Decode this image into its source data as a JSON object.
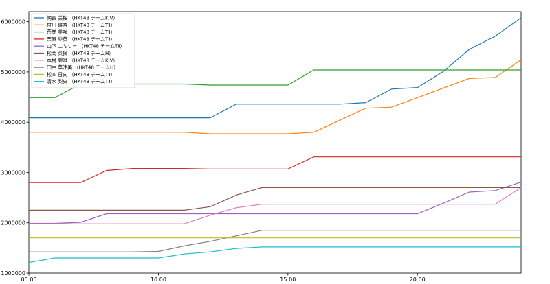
{
  "chart_data": {
    "type": "line",
    "title": "",
    "xlabel": "",
    "ylabel": "",
    "x": [
      5,
      6,
      7,
      8,
      9,
      10,
      11,
      12,
      13,
      14,
      15,
      16,
      17,
      18,
      19,
      20,
      21,
      22,
      23,
      24
    ],
    "xlim": [
      5,
      24
    ],
    "ylim": [
      1000000,
      6200000
    ],
    "xticks": [
      {
        "value": 5,
        "label": "05:00"
      },
      {
        "value": 10,
        "label": "10:00"
      },
      {
        "value": 15,
        "label": "15:00"
      },
      {
        "value": 20,
        "label": "20:00"
      }
    ],
    "yticks": [
      {
        "value": 1000000,
        "label": "1000000"
      },
      {
        "value": 2000000,
        "label": "2000000"
      },
      {
        "value": 3000000,
        "label": "3000000"
      },
      {
        "value": 4000000,
        "label": "4000000"
      },
      {
        "value": 5000000,
        "label": "5000000"
      },
      {
        "value": 6000000,
        "label": "6000000"
      }
    ],
    "grid": false,
    "legend_position": "top-left",
    "series": [
      {
        "name": "朝長 美桜 （HKT48 チームKIV）",
        "color": "#1f77b4",
        "values": [
          4090000,
          4090000,
          4090000,
          4090000,
          4090000,
          4090000,
          4090000,
          4090000,
          4360000,
          4360000,
          4360000,
          4360000,
          4360000,
          4390000,
          4660000,
          4690000,
          5010000,
          5450000,
          5710000,
          6080000
        ]
      },
      {
        "name": "村川 緋杏 （HKT48 チームTⅡ）",
        "color": "#ff7f0e",
        "values": [
          3800000,
          3800000,
          3800000,
          3800000,
          3800000,
          3800000,
          3800000,
          3770000,
          3770000,
          3770000,
          3770000,
          3800000,
          4040000,
          4280000,
          4300000,
          4490000,
          4680000,
          4870000,
          4890000,
          5240000
        ]
      },
      {
        "name": "荒巻 美咲 （HKT48 チームTⅡ）",
        "color": "#2ca02c",
        "values": [
          4490000,
          4490000,
          4760000,
          4760000,
          4760000,
          4760000,
          4760000,
          4740000,
          4740000,
          4740000,
          4740000,
          5040000,
          5040000,
          5040000,
          5040000,
          5040000,
          5040000,
          5040000,
          5040000,
          5040000
        ]
      },
      {
        "name": "栗原 紗英 （HKT48 チームTⅡ）",
        "color": "#d62728",
        "values": [
          2800000,
          2800000,
          2800000,
          3040000,
          3080000,
          3080000,
          3080000,
          3070000,
          3070000,
          3070000,
          3070000,
          3310000,
          3310000,
          3310000,
          3310000,
          3310000,
          3310000,
          3310000,
          3310000,
          3310000
        ]
      },
      {
        "name": "山下 エミリー （HKT48 チームTⅡ）",
        "color": "#9467bd",
        "values": [
          1990000,
          1990000,
          2010000,
          2180000,
          2180000,
          2180000,
          2180000,
          2180000,
          2180000,
          2180000,
          2180000,
          2180000,
          2180000,
          2180000,
          2180000,
          2180000,
          2390000,
          2610000,
          2640000,
          2810000
        ]
      },
      {
        "name": "松岡 菜摘 （HKT48 チームH）",
        "color": "#8c564b",
        "values": [
          2250000,
          2250000,
          2250000,
          2250000,
          2250000,
          2250000,
          2250000,
          2320000,
          2550000,
          2700000,
          2700000,
          2700000,
          2700000,
          2700000,
          2700000,
          2700000,
          2700000,
          2700000,
          2700000,
          2700000
        ]
      },
      {
        "name": "本村 碧唯 （HKT48 チームKIV）",
        "color": "#e377c2",
        "values": [
          1980000,
          1980000,
          1980000,
          1980000,
          1980000,
          1980000,
          1980000,
          2150000,
          2300000,
          2370000,
          2370000,
          2370000,
          2370000,
          2370000,
          2370000,
          2370000,
          2370000,
          2370000,
          2370000,
          2700000
        ]
      },
      {
        "name": "田中 菜津美 （HKT48 チームH）",
        "color": "#7f7f7f",
        "values": [
          1420000,
          1420000,
          1420000,
          1420000,
          1420000,
          1430000,
          1540000,
          1630000,
          1740000,
          1850000,
          1850000,
          1850000,
          1850000,
          1850000,
          1850000,
          1850000,
          1850000,
          1850000,
          1850000,
          1850000
        ]
      },
      {
        "name": "松本 日向 （HKT48 チームTⅡ）",
        "color": "#bcbd22",
        "values": [
          1700000,
          1700000,
          1700000,
          1700000,
          1700000,
          1700000,
          1700000,
          1700000,
          1700000,
          1700000,
          1700000,
          1700000,
          1700000,
          1700000,
          1700000,
          1700000,
          1700000,
          1700000,
          1700000,
          1700000
        ]
      },
      {
        "name": "清水 梨央 （HKT48 チームTⅡ）",
        "color": "#17becf",
        "values": [
          1210000,
          1300000,
          1300000,
          1300000,
          1300000,
          1300000,
          1380000,
          1420000,
          1490000,
          1520000,
          1520000,
          1520000,
          1520000,
          1520000,
          1520000,
          1520000,
          1520000,
          1520000,
          1520000,
          1520000
        ]
      }
    ]
  }
}
